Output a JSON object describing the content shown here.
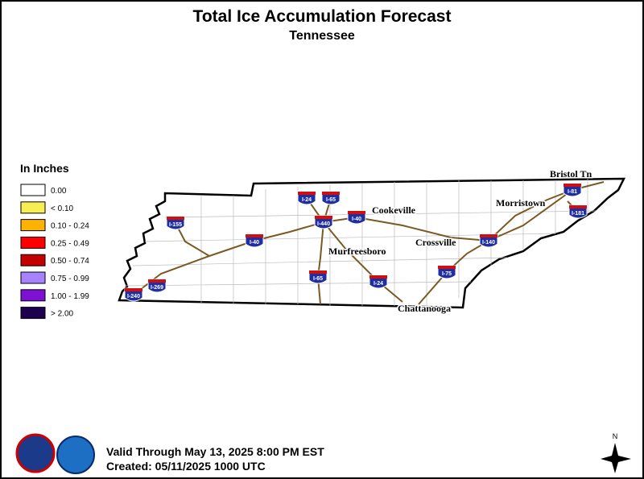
{
  "header": {
    "title": "Total Ice Accumulation Forecast",
    "subtitle": "Tennessee"
  },
  "legend": {
    "title": "In Inches",
    "items": [
      {
        "label": "0.00",
        "color": "#ffffff"
      },
      {
        "label": "< 0.10",
        "color": "#f5ee55"
      },
      {
        "label": "0.10 - 0.24",
        "color": "#ffb300"
      },
      {
        "label": "0.25 - 0.49",
        "color": "#ff0000"
      },
      {
        "label": "0.50 - 0.74",
        "color": "#c40000"
      },
      {
        "label": "0.75 - 0.99",
        "color": "#a782ff"
      },
      {
        "label": "1.00 - 1.99",
        "color": "#7d10d2"
      },
      {
        "label": "> 2.00",
        "color": "#1e0050"
      }
    ]
  },
  "cities": [
    "Bristol Tn",
    "Morristown",
    "Cookeville",
    "Crossville",
    "Murfreesboro",
    "Chattanooga"
  ],
  "interstates": [
    "I-24",
    "I-65",
    "I-440",
    "I-40",
    "I-155",
    "I-40",
    "I-65",
    "I-24",
    "I-75",
    "I-140",
    "I-81",
    "I-181",
    "I-269",
    "I-240"
  ],
  "footer": {
    "valid": "Valid Through May 13, 2025 8:00 PM EST",
    "created": "Created: 05/11/2025 1000 UTC",
    "north": "N"
  }
}
